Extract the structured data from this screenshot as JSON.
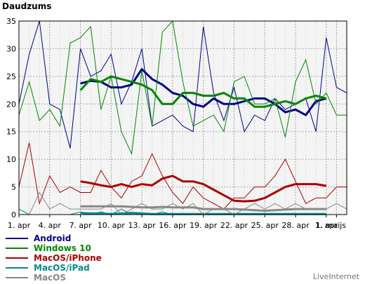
{
  "title": "Daudzums",
  "watermark": "LiveInternet",
  "chart_data": {
    "type": "line",
    "ylim": [
      0,
      35
    ],
    "y_ticks": [
      0,
      5,
      10,
      15,
      20,
      25,
      30,
      35
    ],
    "x_ticks": [
      {
        "label": "1. apr",
        "index": 0
      },
      {
        "label": "4. apr",
        "index": 3
      },
      {
        "label": "7. apr",
        "index": 6
      },
      {
        "label": "10. apr",
        "index": 9
      },
      {
        "label": "13. apr",
        "index": 12
      },
      {
        "label": "16. apr",
        "index": 15
      },
      {
        "label": "19. apr",
        "index": 18
      },
      {
        "label": "22. apr",
        "index": 21
      },
      {
        "label": "25. apr",
        "index": 24
      },
      {
        "label": "28. apr",
        "index": 27
      },
      {
        "label": "1. apr",
        "index": 30
      },
      {
        "label": "1. maijs",
        "index": 31
      }
    ],
    "n_points": 33,
    "grid": true,
    "series": [
      {
        "name": "Android",
        "color": "#00008b",
        "values": [
          20,
          29,
          35,
          20,
          19,
          12,
          30,
          25,
          26,
          29,
          20,
          24,
          30,
          16,
          17,
          18,
          16,
          15,
          34,
          22,
          17,
          23,
          15,
          18,
          17,
          21,
          19,
          20,
          21,
          15,
          32,
          23,
          22
        ],
        "avg_start": 6,
        "avg": [
          23.7,
          24.2,
          24,
          23,
          23,
          23.5,
          26.3,
          24.5,
          23.5,
          22,
          21.5,
          20,
          19.5,
          21,
          20,
          20,
          20.5,
          21,
          21,
          20,
          18.5,
          19,
          18,
          20.5,
          21
        ]
      },
      {
        "name": "Windows 10",
        "color": "#008800",
        "values": [
          18,
          24,
          17,
          19,
          16,
          31,
          32,
          34,
          19,
          25,
          15,
          11,
          26,
          16,
          33,
          35,
          24,
          16,
          17,
          18,
          15,
          24,
          25,
          20,
          20,
          21,
          14,
          24,
          28,
          20,
          22,
          18,
          18
        ],
        "avg_start": 6,
        "avg": [
          22.5,
          24.5,
          24,
          25,
          24.5,
          24,
          23.5,
          22.5,
          20,
          20,
          22,
          22,
          21.5,
          21.5,
          22,
          21,
          21,
          19.5,
          19.5,
          20,
          20.5,
          20,
          21,
          21.5,
          21
        ]
      },
      {
        "name": "MacOS/iPhone",
        "color": "#aa0000",
        "values": [
          5,
          13,
          2,
          7,
          4,
          5,
          4,
          4,
          8,
          5,
          3,
          6,
          7,
          11,
          7,
          4,
          2,
          5,
          3,
          2,
          1,
          3,
          3,
          5,
          5,
          7,
          10,
          6,
          2,
          3,
          3,
          5,
          5
        ],
        "avg_start": 6,
        "avg": [
          6,
          5.7,
          5.3,
          5,
          5.5,
          5,
          5.5,
          5.3,
          6.5,
          7,
          6,
          6,
          5.5,
          4.5,
          3.5,
          2.5,
          2.4,
          2.5,
          3,
          4,
          5,
          5.5,
          5.5,
          5.5,
          5.2
        ]
      },
      {
        "name": "MacOS/iPad",
        "color": "#008b8b",
        "values": [
          1,
          0,
          0,
          0,
          0,
          0,
          0.5,
          0,
          0.5,
          0,
          1,
          0,
          0,
          0,
          0.5,
          0,
          0,
          0,
          0,
          0,
          0,
          0,
          0,
          0,
          0,
          0,
          0,
          0,
          0,
          0,
          0,
          0,
          0
        ],
        "avg_start": 6,
        "avg": [
          0.3,
          0.2,
          0.2,
          0.1,
          0.2,
          0.3,
          0.2,
          0.1,
          0.1,
          0.1,
          0.1,
          0.1,
          0.1,
          0.1,
          0.1,
          0.1,
          0.1,
          0.1,
          0.1,
          0.1,
          0.1,
          0.1,
          0.1,
          0.1,
          0.1
        ]
      },
      {
        "name": "MacOS",
        "color": "#888888",
        "values": [
          0,
          0,
          4,
          1,
          2,
          1,
          1,
          1,
          1,
          2,
          0,
          1,
          2,
          1,
          1,
          2,
          1,
          2,
          0,
          1,
          1,
          0,
          1,
          2,
          1,
          2,
          1,
          2,
          1,
          1,
          1,
          2,
          1
        ],
        "avg_start": 6,
        "avg": [
          1.5,
          1.5,
          1.5,
          1.5,
          1.5,
          1.4,
          1.3,
          1.3,
          1.4,
          1.3,
          1.3,
          1.3,
          1,
          1,
          1,
          1,
          0.9,
          0.8,
          0.7,
          0.8,
          0.9,
          1,
          1,
          1,
          1
        ]
      }
    ]
  }
}
